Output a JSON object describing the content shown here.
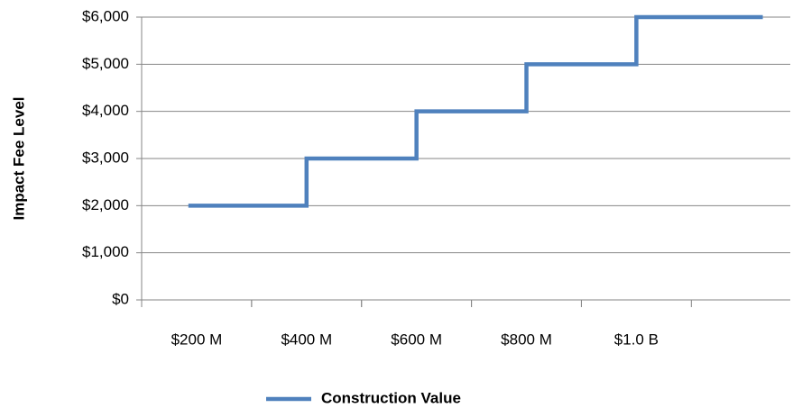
{
  "chart_data": {
    "type": "line",
    "y_label": "Impact Fee Level",
    "xlim": [
      100,
      1280
    ],
    "xticks": [
      {
        "value": 200,
        "label": "$200 M"
      },
      {
        "value": 400,
        "label": "$400 M"
      },
      {
        "value": 600,
        "label": "$600 M"
      },
      {
        "value": 800,
        "label": "$800 M"
      },
      {
        "value": 1000,
        "label": "$1.0 B"
      }
    ],
    "ylim": [
      0,
      6000
    ],
    "yticks": [
      {
        "value": 0,
        "label": "$0"
      },
      {
        "value": 1000,
        "label": "$1,000"
      },
      {
        "value": 2000,
        "label": "$2,000"
      },
      {
        "value": 3000,
        "label": "$3,000"
      },
      {
        "value": 4000,
        "label": "$4,000"
      },
      {
        "value": 5000,
        "label": "$5,000"
      },
      {
        "value": 6000,
        "label": "$6,000"
      }
    ],
    "grid": true,
    "series": [
      {
        "name": "Construction Value",
        "color": "#4f81bd",
        "x": [
          185,
          400,
          400,
          600,
          600,
          800,
          800,
          1000,
          1000,
          1230
        ],
        "values": [
          2000,
          2000,
          3000,
          3000,
          4000,
          4000,
          5000,
          5000,
          6000,
          6000
        ]
      }
    ]
  }
}
